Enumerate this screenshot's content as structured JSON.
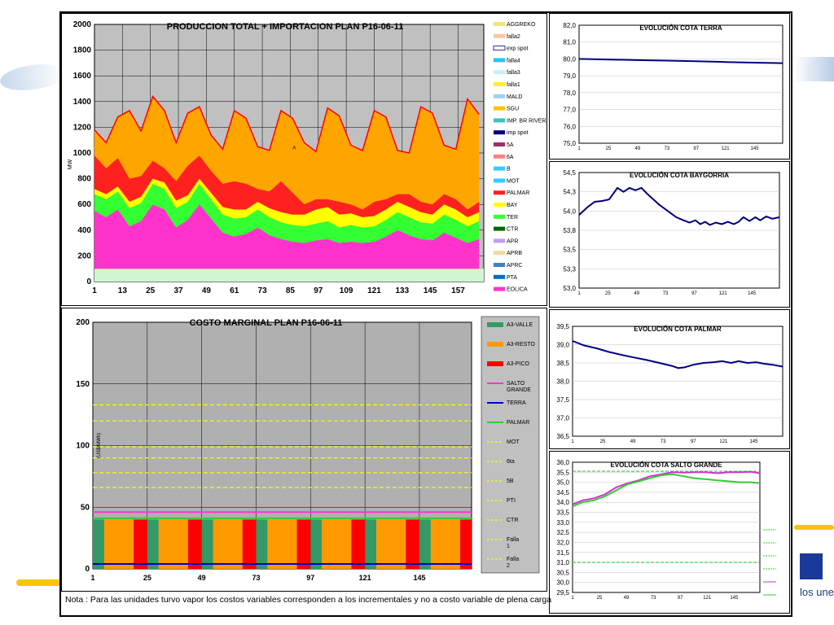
{
  "brand_text": "los une",
  "note": "Nota : Para las unidades turvo vapor los costos variables corresponden a los incrementales y no a costo variable de plena carga",
  "chart_data": [
    {
      "id": "produccion",
      "type": "area",
      "title": "PRODUCCION TOTAL + IMPORTACION PLAN    P16-06-11",
      "ylabel": "MW",
      "ylim": [
        0,
        2000
      ],
      "yticks": [
        "0",
        "200",
        "400",
        "600",
        "800",
        "1000",
        "1200",
        "1400",
        "1600",
        "1800",
        "2000"
      ],
      "xticks": [
        "1",
        "13",
        "25",
        "37",
        "49",
        "61",
        "73",
        "85",
        "97",
        "109",
        "121",
        "133",
        "145",
        "157"
      ],
      "xrange": [
        1,
        168
      ],
      "annotation": "A",
      "grid": true,
      "legend_position": "right",
      "legend": [
        {
          "name": "AGGREKO",
          "color": "#f5e27a"
        },
        {
          "name": "falla2",
          "color": "#f8c8a0"
        },
        {
          "name": "exp spot",
          "color": "#ffffff"
        },
        {
          "name": "falla4",
          "color": "#26c6f0"
        },
        {
          "name": "falla3",
          "color": "#c8f0f8"
        },
        {
          "name": "falla1",
          "color": "#f8f030"
        },
        {
          "name": "MALD",
          "color": "#a0d0f0"
        },
        {
          "name": "SGU",
          "color": "#ffc000"
        },
        {
          "name": "IMP. BR RIVERA",
          "color": "#40c0c0"
        },
        {
          "name": "imp spot",
          "color": "#000080"
        },
        {
          "name": "5A",
          "color": "#993366"
        },
        {
          "name": "6A",
          "color": "#ff8080"
        },
        {
          "name": "B",
          "color": "#33ccff"
        },
        {
          "name": "MOT",
          "color": "#33ccff"
        },
        {
          "name": "PALMAR",
          "color": "#ff2020"
        },
        {
          "name": "BAY",
          "color": "#ffff00"
        },
        {
          "name": "TER",
          "color": "#33ff33"
        },
        {
          "name": "CTR",
          "color": "#006600"
        },
        {
          "name": "APR",
          "color": "#c0a0f0"
        },
        {
          "name": "APRB",
          "color": "#f0d8a0"
        },
        {
          "name": "APRC",
          "color": "#4080c0"
        },
        {
          "name": "PTA",
          "color": "#0070c0"
        },
        {
          "name": "EOLICA",
          "color": "#ff33cc"
        }
      ],
      "series": [
        {
          "name": "EOLICA",
          "color": "#ff33cc",
          "x": [
            1,
            6,
            11,
            16,
            21,
            26,
            31,
            36,
            41,
            46,
            51,
            56,
            61,
            66,
            71,
            76,
            81,
            86,
            91,
            96,
            101,
            106,
            111,
            116,
            121,
            126,
            131,
            136,
            141,
            146,
            151,
            156,
            161,
            166
          ],
          "values": [
            550,
            500,
            560,
            430,
            470,
            600,
            560,
            420,
            480,
            600,
            490,
            380,
            350,
            370,
            420,
            360,
            330,
            310,
            300,
            320,
            330,
            300,
            310,
            300,
            310,
            350,
            400,
            360,
            330,
            320,
            380,
            340,
            300,
            330
          ]
        },
        {
          "name": "TER",
          "color": "#33ff33",
          "x": [
            1,
            6,
            11,
            16,
            21,
            26,
            31,
            36,
            41,
            46,
            51,
            56,
            61,
            66,
            71,
            76,
            81,
            86,
            91,
            96,
            101,
            106,
            111,
            116,
            121,
            126,
            131,
            136,
            141,
            146,
            151,
            156,
            161,
            166
          ],
          "values": [
            680,
            640,
            700,
            570,
            610,
            760,
            720,
            570,
            620,
            760,
            640,
            520,
            490,
            500,
            560,
            500,
            460,
            440,
            430,
            450,
            470,
            420,
            440,
            420,
            430,
            480,
            540,
            500,
            460,
            450,
            520,
            480,
            430,
            470
          ]
        },
        {
          "name": "BAY",
          "color": "#ffff00",
          "x": [
            1,
            6,
            11,
            16,
            21,
            26,
            31,
            36,
            41,
            46,
            51,
            56,
            61,
            66,
            71,
            76,
            81,
            86,
            91,
            96,
            101,
            106,
            111,
            116,
            121,
            126,
            131,
            136,
            141,
            146,
            151,
            156,
            161,
            166
          ],
          "values": [
            720,
            680,
            740,
            620,
            660,
            800,
            770,
            630,
            670,
            800,
            690,
            580,
            560,
            560,
            620,
            570,
            540,
            520,
            520,
            560,
            580,
            520,
            530,
            500,
            510,
            560,
            620,
            580,
            540,
            520,
            600,
            560,
            500,
            540
          ]
        },
        {
          "name": "PALMAR",
          "color": "#ff2020",
          "x": [
            1,
            6,
            11,
            16,
            21,
            26,
            31,
            36,
            41,
            46,
            51,
            56,
            61,
            66,
            71,
            76,
            81,
            86,
            91,
            96,
            101,
            106,
            111,
            116,
            121,
            126,
            131,
            136,
            141,
            146,
            151,
            156,
            161,
            166
          ],
          "values": [
            980,
            880,
            960,
            800,
            820,
            940,
            880,
            780,
            900,
            980,
            860,
            760,
            780,
            760,
            720,
            700,
            780,
            690,
            600,
            640,
            640,
            620,
            600,
            560,
            620,
            640,
            680,
            680,
            620,
            600,
            680,
            640,
            560,
            620
          ]
        },
        {
          "name": "SGU",
          "color": "#ffa500",
          "x": [
            1,
            6,
            11,
            16,
            21,
            26,
            31,
            36,
            41,
            46,
            51,
            56,
            61,
            66,
            71,
            76,
            81,
            86,
            91,
            96,
            101,
            106,
            111,
            116,
            121,
            126,
            131,
            136,
            141,
            146,
            151,
            156,
            161,
            166
          ],
          "values": [
            1180,
            1080,
            1280,
            1330,
            1170,
            1440,
            1330,
            1080,
            1310,
            1360,
            1140,
            1030,
            1330,
            1270,
            1050,
            1020,
            1330,
            1270,
            1080,
            1010,
            1350,
            1290,
            1060,
            1020,
            1330,
            1280,
            1020,
            1000,
            1360,
            1310,
            1060,
            1030,
            1420,
            1300
          ]
        }
      ],
      "baseline_band": {
        "name": "base",
        "value": 100,
        "color": "#d0f5d0"
      }
    },
    {
      "id": "costo",
      "type": "bar",
      "title": "COSTO MARGINAL PLAN    P16-06-11",
      "ylabel": "(US$/MWh)",
      "ylim": [
        0,
        200
      ],
      "yticks": [
        "0",
        "50",
        "100",
        "150",
        "200"
      ],
      "xticks": [
        "1",
        "25",
        "49",
        "73",
        "97",
        "121",
        "145"
      ],
      "xrange": [
        1,
        168
      ],
      "legend_position": "right",
      "legend": [
        {
          "name": "A3-VALLE",
          "color": "#339966",
          "kind": "bar"
        },
        {
          "name": "A3-RESTO",
          "color": "#ff9900",
          "kind": "bar"
        },
        {
          "name": "A3-PICO",
          "color": "#ff0000",
          "kind": "bar"
        },
        {
          "name": "SALTO GRANDE",
          "color": "#ff33cc",
          "kind": "line"
        },
        {
          "name": "TERRA",
          "color": "#0000cc",
          "kind": "line"
        },
        {
          "name": "PALMAR",
          "color": "#33cc33",
          "kind": "line"
        },
        {
          "name": "MOT",
          "color": "#ffff00",
          "kind": "dash"
        },
        {
          "name": "6ta",
          "color": "#ffff00",
          "kind": "dash"
        },
        {
          "name": "5B",
          "color": "#ffff00",
          "kind": "dash"
        },
        {
          "name": "PTI",
          "color": "#ffff00",
          "kind": "dash"
        },
        {
          "name": "CTR",
          "color": "#ffff00",
          "kind": "dash"
        },
        {
          "name": "Falla 1",
          "color": "#ffff00",
          "kind": "dash"
        },
        {
          "name": "Falla 2",
          "color": "#ffff00",
          "kind": "dash"
        }
      ],
      "bar_value": 40,
      "day_pattern": [
        {
          "name": "A3-VALLE",
          "hours": 5,
          "color": "#339966"
        },
        {
          "name": "A3-RESTO",
          "hours": 13,
          "color": "#ff9900"
        },
        {
          "name": "A3-PICO",
          "hours": 6,
          "color": "#ff0000"
        }
      ],
      "lines": [
        {
          "name": "SALTO GRANDE",
          "value": 46,
          "color": "#ff33cc"
        },
        {
          "name": "TERRA",
          "value": 4,
          "color": "#0000cc"
        },
        {
          "name": "PALMAR",
          "value": 41,
          "color": "#33cc33"
        }
      ],
      "dashed_levels": [
        133,
        120,
        99,
        90,
        78,
        66
      ],
      "grid": true
    },
    {
      "id": "terra",
      "type": "line",
      "title": "EVOLUCIÓN COTA TERRA",
      "ylim": [
        75.0,
        82.0
      ],
      "yticks": [
        "75,0",
        "76,0",
        "77,0",
        "78,0",
        "79,0",
        "80,0",
        "81,0",
        "82,0"
      ],
      "xticks": [
        "1",
        "25",
        "49",
        "73",
        "97",
        "121",
        "145"
      ],
      "xrange": [
        1,
        168
      ],
      "series": [
        {
          "name": "TERRA",
          "color": "#000080",
          "x": [
            1,
            25,
            49,
            73,
            97,
            121,
            145,
            168
          ],
          "values": [
            80.0,
            79.97,
            79.93,
            79.9,
            79.86,
            79.82,
            79.78,
            79.75
          ]
        }
      ]
    },
    {
      "id": "baygorria",
      "type": "line",
      "title": "EVOLUCIÓN COTA BAYGORRIA",
      "ylim": [
        53.0,
        54.5
      ],
      "yticks": [
        "53,0",
        "53,3",
        "53,5",
        "53,8",
        "54,0",
        "54,3",
        "54,5"
      ],
      "xticks": [
        "1",
        "25",
        "49",
        "73",
        "97",
        "121",
        "145"
      ],
      "xrange": [
        1,
        168
      ],
      "series": [
        {
          "name": "BAYGORRIA",
          "color": "#000080",
          "x": [
            1,
            8,
            14,
            20,
            26,
            33,
            38,
            43,
            48,
            53,
            58,
            63,
            68,
            75,
            82,
            88,
            93,
            98,
            102,
            106,
            110,
            115,
            120,
            125,
            130,
            134,
            138,
            143,
            148,
            152,
            157,
            162,
            168
          ],
          "values": [
            53.95,
            54.05,
            54.12,
            54.13,
            54.15,
            54.3,
            54.25,
            54.3,
            54.27,
            54.3,
            54.22,
            54.15,
            54.08,
            54.0,
            53.92,
            53.88,
            53.85,
            53.88,
            53.83,
            53.86,
            53.82,
            53.85,
            53.83,
            53.86,
            53.83,
            53.86,
            53.92,
            53.87,
            53.92,
            53.88,
            53.93,
            53.9,
            53.92
          ]
        }
      ]
    },
    {
      "id": "palmar",
      "type": "line",
      "title": "EVOLUCIÓN COTA PALMAR",
      "ylim": [
        36.5,
        39.5
      ],
      "yticks": [
        "36,5",
        "37,0",
        "37,5",
        "38,0",
        "38,5",
        "39,0",
        "39,5"
      ],
      "xticks": [
        "1",
        "25",
        "49",
        "73",
        "97",
        "121",
        "145"
      ],
      "xrange": [
        1,
        168
      ],
      "series": [
        {
          "name": "PALMAR",
          "color": "#000080",
          "x": [
            1,
            10,
            20,
            30,
            40,
            50,
            60,
            70,
            80,
            85,
            90,
            97,
            105,
            113,
            120,
            127,
            133,
            140,
            147,
            153,
            160,
            168
          ],
          "values": [
            39.1,
            38.98,
            38.9,
            38.8,
            38.72,
            38.65,
            38.58,
            38.5,
            38.42,
            38.36,
            38.38,
            38.45,
            38.5,
            38.52,
            38.55,
            38.5,
            38.55,
            38.5,
            38.52,
            38.48,
            38.45,
            38.4
          ]
        }
      ]
    },
    {
      "id": "salto",
      "type": "line",
      "title": "EVOLUCIÓN COTA SALTO GRANDE",
      "ylim": [
        29.5,
        36.0
      ],
      "yticks": [
        "29,5",
        "30,0",
        "30,5",
        "31,0",
        "31,5",
        "32,0",
        "32,5",
        "33,0",
        "33,5",
        "34,0",
        "34,5",
        "35,0",
        "35,5",
        "36,0"
      ],
      "xticks": [
        "1",
        "25",
        "49",
        "73",
        "97",
        "121",
        "145"
      ],
      "xrange": [
        1,
        168
      ],
      "hlines": [
        {
          "value": 35.55,
          "color": "#33cc33"
        },
        {
          "value": 31.0,
          "color": "#33cc33"
        }
      ],
      "series": [
        {
          "name": "magenta",
          "color": "#cc33cc",
          "x": [
            1,
            10,
            20,
            30,
            40,
            50,
            60,
            70,
            80,
            90,
            100,
            110,
            120,
            130,
            140,
            150,
            160,
            168
          ],
          "values": [
            33.9,
            34.1,
            34.2,
            34.4,
            34.75,
            34.95,
            35.1,
            35.3,
            35.4,
            35.5,
            35.48,
            35.5,
            35.5,
            35.45,
            35.5,
            35.5,
            35.52,
            35.45
          ]
        },
        {
          "name": "green",
          "color": "#33cc33",
          "x": [
            1,
            10,
            20,
            30,
            40,
            50,
            60,
            70,
            80,
            90,
            100,
            110,
            120,
            130,
            140,
            150,
            160,
            168
          ],
          "values": [
            33.8,
            34.0,
            34.1,
            34.3,
            34.6,
            34.9,
            35.05,
            35.2,
            35.35,
            35.4,
            35.3,
            35.2,
            35.15,
            35.1,
            35.05,
            35.0,
            35.0,
            34.95
          ]
        }
      ],
      "legend": [
        {
          "name": "",
          "color": "#33cc33",
          "kind": "dash"
        },
        {
          "name": "",
          "color": "#33cc33",
          "kind": "dash"
        },
        {
          "name": "",
          "color": "#33cc33",
          "kind": "dash"
        },
        {
          "name": "",
          "color": "#33cc33",
          "kind": "dash"
        },
        {
          "name": "",
          "color": "#cc33cc",
          "kind": "line"
        },
        {
          "name": "",
          "color": "#33cc33",
          "kind": "line"
        }
      ]
    }
  ]
}
